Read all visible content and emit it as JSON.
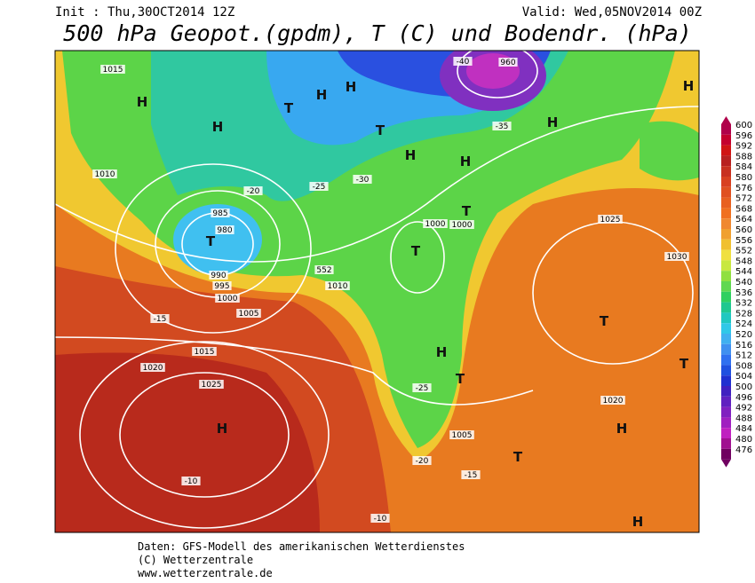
{
  "header": {
    "init": "Init : Thu,30OCT2014 12Z",
    "valid": "Valid: Wed,05NOV2014 00Z",
    "title": "500 hPa Geopot.(gpdm), T (C) und Bodendr. (hPa)"
  },
  "legend": {
    "levels": [
      "600",
      "596",
      "592",
      "588",
      "584",
      "580",
      "576",
      "572",
      "568",
      "564",
      "560",
      "556",
      "552",
      "548",
      "544",
      "540",
      "536",
      "532",
      "528",
      "524",
      "520",
      "516",
      "512",
      "508",
      "504",
      "500",
      "496",
      "492",
      "488",
      "484",
      "480",
      "476"
    ]
  },
  "map": {
    "labels": [
      "H",
      "T",
      "H",
      "H",
      "T",
      "H",
      "H",
      "T",
      "H",
      "H",
      "T",
      "T",
      "H",
      "T",
      "H",
      "H",
      "T",
      "T",
      "T",
      "H",
      "H",
      "960",
      "980",
      "985",
      "990",
      "995",
      "1000",
      "1005",
      "1010",
      "1015",
      "1020",
      "1025",
      "1000",
      "1005",
      "1010",
      "1015",
      "1020",
      "1025",
      "1030",
      "1000",
      "-10",
      "-15",
      "-20",
      "-25",
      "-30",
      "-35",
      "-40",
      "-10",
      "-15",
      "-20",
      "-25",
      "552"
    ]
  },
  "footer": {
    "lines": [
      "Daten: GFS-Modell des amerikanischen Wetterdienstes",
      "(C) Wetterzentrale",
      "www.wetterzentrale.de"
    ]
  }
}
